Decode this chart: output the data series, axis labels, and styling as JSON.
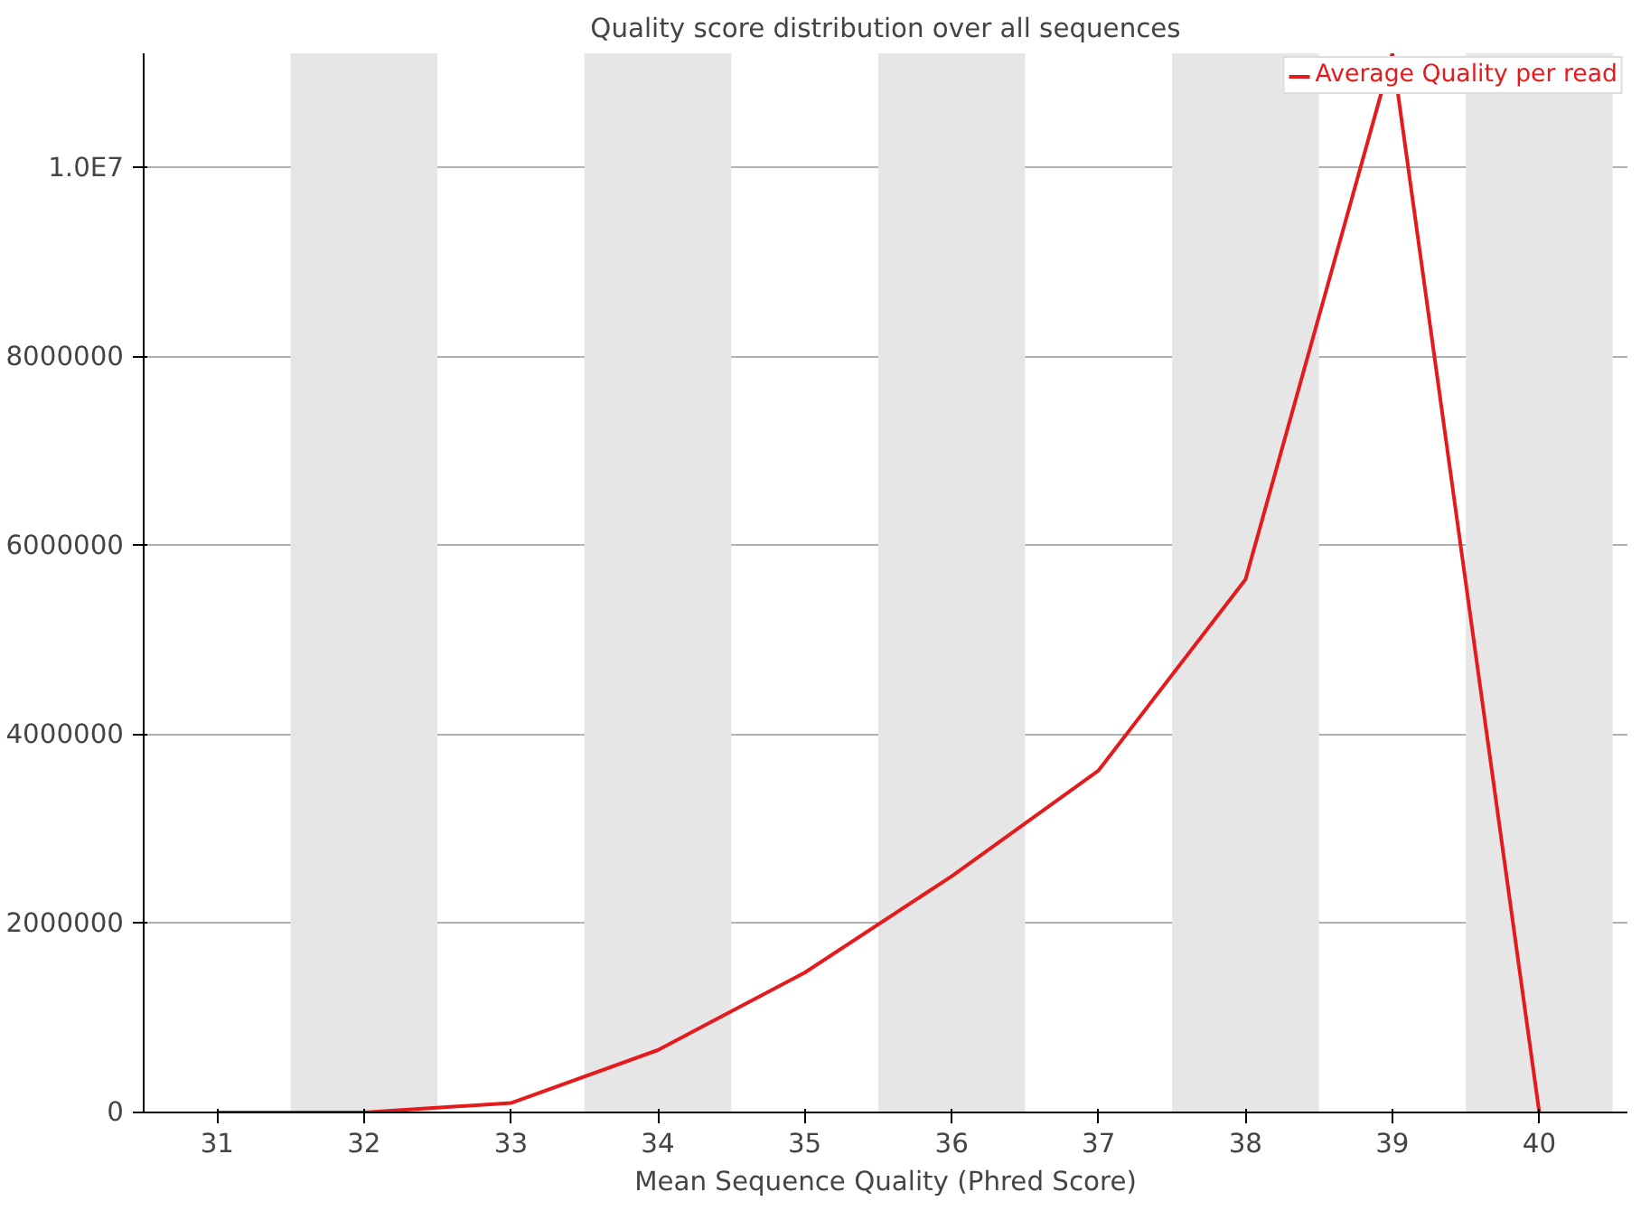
{
  "chart_data": {
    "type": "line",
    "title": "Quality score distribution over all sequences",
    "xlabel": "Mean Sequence Quality (Phred Score)",
    "x": [
      31,
      32,
      33,
      34,
      35,
      36,
      37,
      38,
      39,
      40
    ],
    "series": [
      {
        "name": "Average Quality per read",
        "color": "#e41a1c",
        "values": [
          0,
          0,
          100000,
          660000,
          1480000,
          2500000,
          3620000,
          5640000,
          11210000,
          0
        ]
      }
    ],
    "xlim": [
      30.5,
      40.6
    ],
    "xticks": [
      31,
      32,
      33,
      34,
      35,
      36,
      37,
      38,
      39,
      40
    ],
    "ylim": [
      0,
      11210000
    ],
    "yticks": [
      0,
      2000000,
      4000000,
      6000000,
      8000000,
      {
        "value": 10000000,
        "label": "1.0E7"
      }
    ],
    "bands": [
      {
        "axis": "x",
        "from": 31.5,
        "to": 32.5,
        "color": "#e6e6e6"
      },
      {
        "axis": "x",
        "from": 33.5,
        "to": 34.5,
        "color": "#e6e6e6"
      },
      {
        "axis": "x",
        "from": 35.5,
        "to": 36.5,
        "color": "#e6e6e6"
      },
      {
        "axis": "x",
        "from": 37.5,
        "to": 38.5,
        "color": "#e6e6e6"
      },
      {
        "axis": "x",
        "from": 39.5,
        "to": 40.5,
        "color": "#e6e6e6"
      }
    ],
    "grid": "y",
    "legend": "top right",
    "marker": "none",
    "line_style": "solid"
  }
}
